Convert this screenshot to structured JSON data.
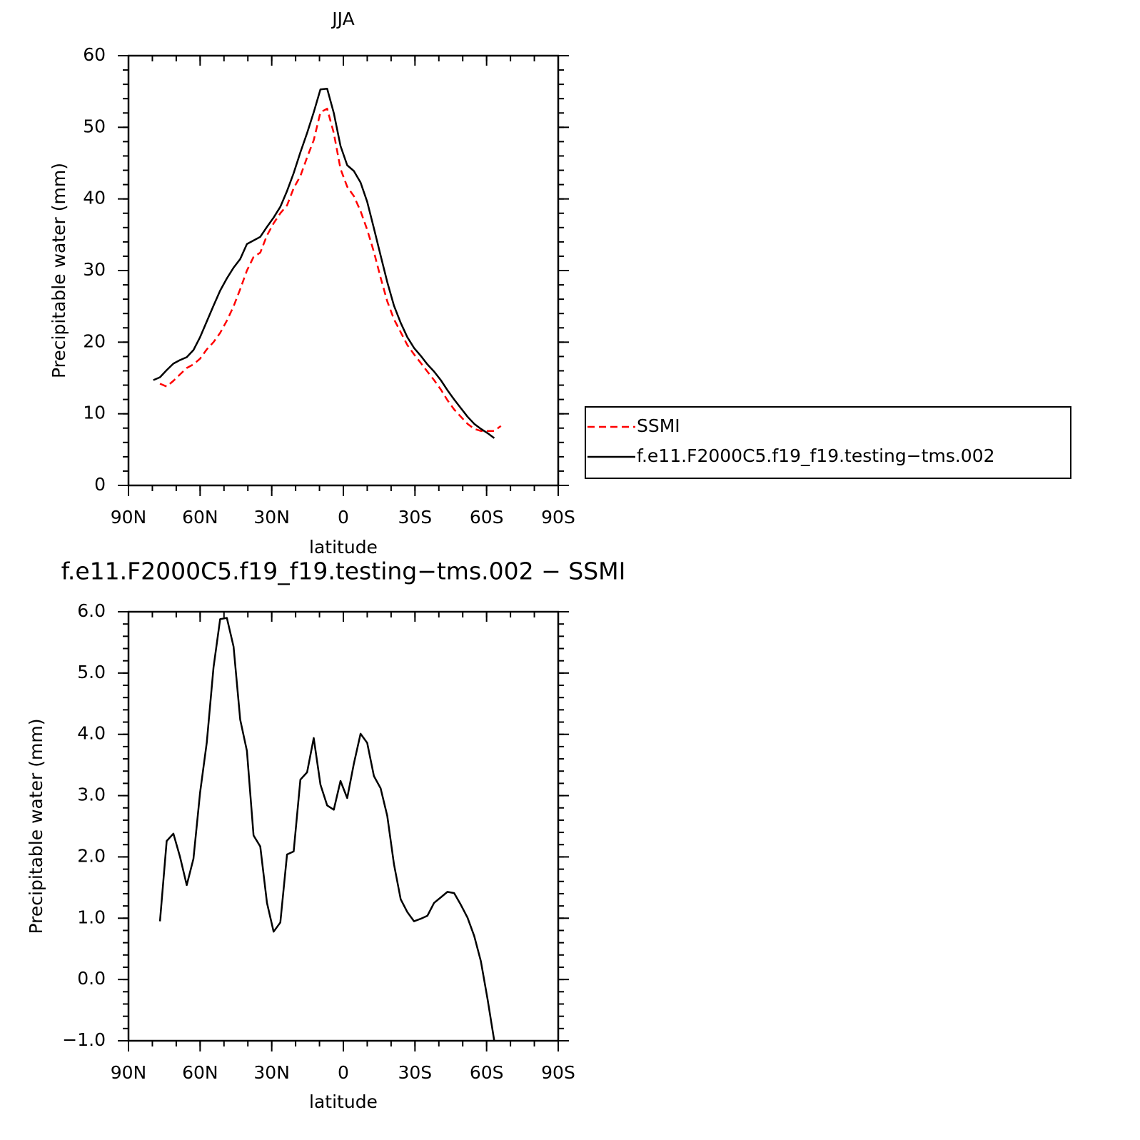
{
  "chart_data": [
    {
      "type": "line",
      "title": "JJA",
      "xlabel": "latitude",
      "ylabel": "Precipitable water (mm)",
      "x": [
        79.6,
        76.8,
        74.0,
        71.2,
        68.4,
        65.6,
        62.8,
        60.0,
        57.2,
        54.4,
        51.6,
        48.8,
        46.0,
        43.2,
        40.4,
        37.6,
        34.8,
        32.0,
        29.2,
        26.4,
        23.6,
        20.8,
        18.0,
        15.2,
        12.4,
        9.6,
        6.8,
        4.0,
        1.2,
        -1.6,
        -4.4,
        -7.2,
        -10.0,
        -12.8,
        -15.6,
        -18.4,
        -21.2,
        -24.0,
        -26.8,
        -29.6,
        -32.4,
        -35.2,
        -38.0,
        -40.8,
        -43.6,
        -46.4,
        -49.2,
        -52.0,
        -54.8,
        -57.6,
        -60.4,
        -63.2,
        -66.0
      ],
      "series": [
        {
          "name": "SSMI",
          "color": "#ff0000",
          "dash": "dashed",
          "values": [
            null,
            14.2,
            13.8,
            14.6,
            15.5,
            16.4,
            16.9,
            17.7,
            19.0,
            20.0,
            21.3,
            23.0,
            25.0,
            27.4,
            30.0,
            31.9,
            32.5,
            34.9,
            36.6,
            38.0,
            39.1,
            41.5,
            43.2,
            45.8,
            48.2,
            52.1,
            52.6,
            49.2,
            44.2,
            41.7,
            40.4,
            38.3,
            35.7,
            32.6,
            29.0,
            25.7,
            23.2,
            21.4,
            19.6,
            18.3,
            17.1,
            15.9,
            14.7,
            13.4,
            11.9,
            10.6,
            9.6,
            8.6,
            7.9,
            7.6,
            7.6,
            7.6,
            8.3
          ]
        },
        {
          "name": "f.e11.F2000C5.f19_f19.testing−tms.002",
          "color": "#000000",
          "dash": "solid",
          "values": [
            14.7,
            15.1,
            16.1,
            17.0,
            17.5,
            17.9,
            18.9,
            20.7,
            22.9,
            25.1,
            27.2,
            28.9,
            30.4,
            31.6,
            33.7,
            34.2,
            34.7,
            36.1,
            37.4,
            38.9,
            41.1,
            43.6,
            46.5,
            49.2,
            52.1,
            55.3,
            55.4,
            52.0,
            47.4,
            44.7,
            43.9,
            42.3,
            39.6,
            35.9,
            32.1,
            28.4,
            25.1,
            22.7,
            20.7,
            19.2,
            18.1,
            16.9,
            15.9,
            14.7,
            13.3,
            12.0,
            10.8,
            9.6,
            8.6,
            7.9,
            7.3,
            6.6,
            null
          ]
        }
      ],
      "xlim": [
        90,
        -90
      ],
      "xticks": [
        {
          "value": 90,
          "label": "90N"
        },
        {
          "value": 60,
          "label": "60N"
        },
        {
          "value": 30,
          "label": "30N"
        },
        0,
        {
          "value": -30,
          "label": "30S"
        },
        {
          "value": -60,
          "label": "60S"
        },
        {
          "value": -90,
          "label": "90S"
        }
      ],
      "xminor": 10,
      "ylim": [
        0,
        60
      ],
      "yticks": [
        0,
        10,
        20,
        30,
        40,
        50,
        60
      ],
      "yminor": 2,
      "legend": "right"
    },
    {
      "type": "line",
      "title": "f.e11.F2000C5.f19_f19.testing−tms.002 − SSMI",
      "xlabel": "latitude",
      "ylabel": "Precipitable water (mm)",
      "x": [
        79.6,
        76.8,
        74.0,
        71.2,
        68.4,
        65.6,
        62.8,
        60.0,
        57.2,
        54.4,
        51.6,
        48.8,
        46.0,
        43.2,
        40.4,
        37.6,
        34.8,
        32.0,
        29.2,
        26.4,
        23.6,
        20.8,
        18.0,
        15.2,
        12.4,
        9.6,
        6.8,
        4.0,
        1.2,
        -1.6,
        -4.4,
        -7.2,
        -10.0,
        -12.8,
        -15.6,
        -18.4,
        -21.2,
        -24.0,
        -26.8,
        -29.6,
        -32.4,
        -35.2,
        -38.0,
        -40.8,
        -43.6,
        -46.4,
        -49.2,
        -52.0,
        -54.8,
        -57.6,
        -60.4,
        -63.2,
        -66.0
      ],
      "series": [
        {
          "color": "#000000",
          "dash": "solid",
          "values": [
            null,
            0.95,
            2.26,
            2.38,
            2.0,
            1.54,
            1.97,
            3.05,
            3.87,
            5.09,
            5.88,
            5.9,
            5.43,
            4.24,
            3.73,
            2.35,
            2.17,
            1.25,
            0.78,
            0.93,
            2.04,
            2.09,
            3.26,
            3.38,
            3.94,
            3.18,
            2.84,
            2.77,
            3.24,
            2.96,
            3.52,
            4.01,
            3.86,
            3.32,
            3.12,
            2.67,
            1.88,
            1.31,
            1.1,
            0.95,
            0.99,
            1.04,
            1.25,
            1.34,
            1.43,
            1.41,
            1.22,
            1.01,
            0.71,
            0.3,
            -0.32,
            -1.0,
            null
          ]
        }
      ],
      "xlim": [
        90,
        -90
      ],
      "xticks": [
        {
          "value": 90,
          "label": "90N"
        },
        {
          "value": 60,
          "label": "60N"
        },
        {
          "value": 30,
          "label": "30N"
        },
        0,
        {
          "value": -30,
          "label": "30S"
        },
        {
          "value": -60,
          "label": "60S"
        },
        {
          "value": -90,
          "label": "90S"
        }
      ],
      "xminor": 10,
      "ylim": [
        -1,
        6
      ],
      "yticks": [
        {
          "value": -1,
          "label": "−1.0"
        },
        {
          "value": 0,
          "label": "0.0"
        },
        {
          "value": 1,
          "label": "1.0"
        },
        {
          "value": 2,
          "label": "2.0"
        },
        {
          "value": 3,
          "label": "3.0"
        },
        {
          "value": 4,
          "label": "4.0"
        },
        {
          "value": 5,
          "label": "5.0"
        },
        {
          "value": 6,
          "label": "6.0"
        }
      ],
      "yminor": 0.2
    }
  ]
}
